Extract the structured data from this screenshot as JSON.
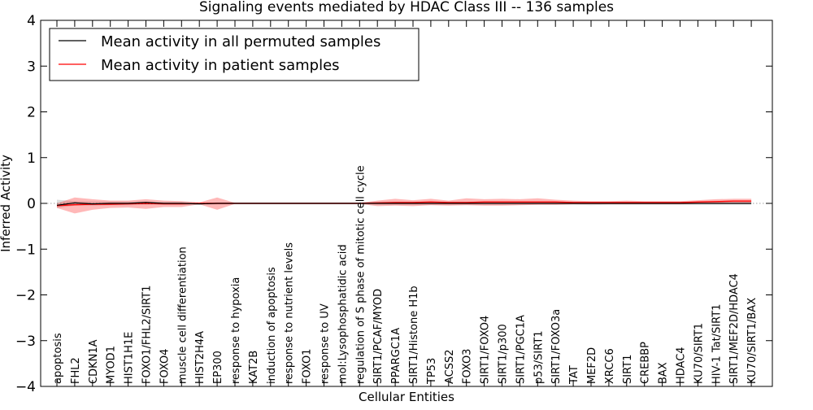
{
  "chart_data": {
    "type": "line",
    "title": "Signaling events mediated by HDAC Class III -- 136 samples",
    "xlabel": "Cellular Entities",
    "ylabel": "Inferred Activity",
    "ylim": [
      -4,
      4
    ],
    "yticks": [
      "4",
      "3",
      "2",
      "1",
      "0",
      "−1",
      "−2",
      "−3",
      "−4"
    ],
    "ytick_values": [
      4,
      3,
      2,
      1,
      0,
      -1,
      -2,
      -3,
      -4
    ],
    "legend_position": "top-left",
    "categories": [
      "apoptosis",
      "FHL2",
      "CDKN1A",
      "MYOD1",
      "HIST1H1E",
      "FOXO1/FHL2/SIRT1",
      "FOXO4",
      "muscle cell differentiation",
      "HIST2H4A",
      "EP300",
      "response to hypoxia",
      "KAT2B",
      "induction of apoptosis",
      "response to nutrient levels",
      "FOXO1",
      "response to UV",
      "mol:Lysophosphatidic acid",
      "regulation of S phase of mitotic cell cycle",
      "SIRT1/PCAF/MYOD",
      "PPARGC1A",
      "SIRT1/Histone H1b",
      "TP53",
      "ACSS2",
      "FOXO3",
      "SIRT1/FOXO4",
      "SIRT1/p300",
      "SIRT1/PGC1A",
      "p53/SIRT1",
      "SIRT1/FOXO3a",
      "TAT",
      "MEF2D",
      "XRCC6",
      "SIRT1",
      "CREBBP",
      "BAX",
      "HDAC4",
      "KU70/SIRT1",
      "HIV-1 Tat/SIRT1",
      "SIRT1/MEF2D/HDAC4",
      "KU70/SIRT1/BAX"
    ],
    "series": [
      {
        "name": "Mean activity in all permuted samples",
        "color": "#000000",
        "values": [
          -0.04,
          0.01,
          -0.01,
          0.0,
          0.0,
          0.02,
          0.0,
          0.0,
          -0.01,
          0.0,
          0.0,
          0.0,
          0.0,
          0.0,
          0.0,
          0.0,
          0.0,
          0.0,
          0.0,
          0.0,
          0.0,
          0.0,
          0.0,
          0.0,
          0.0,
          0.0,
          0.0,
          0.0,
          0.0,
          0.0,
          0.0,
          0.0,
          0.0,
          0.0,
          0.0,
          0.0,
          0.0,
          0.0,
          0.0,
          0.0
        ],
        "lower": [
          -0.1,
          -0.05,
          -0.05,
          -0.04,
          -0.04,
          -0.03,
          -0.03,
          -0.03,
          -0.03,
          -0.02,
          -0.02,
          -0.02,
          -0.02,
          -0.02,
          -0.02,
          -0.02,
          -0.02,
          -0.02,
          -0.03,
          -0.03,
          -0.03,
          -0.03,
          -0.03,
          -0.03,
          -0.03,
          -0.03,
          -0.03,
          -0.03,
          -0.03,
          -0.03,
          -0.04,
          -0.03,
          -0.03,
          -0.03,
          -0.03,
          -0.03,
          -0.03,
          -0.03,
          -0.03,
          -0.03
        ],
        "upper": [
          0.08,
          0.05,
          0.04,
          0.04,
          0.04,
          0.04,
          0.03,
          0.03,
          0.02,
          0.02,
          0.02,
          0.02,
          0.02,
          0.02,
          0.02,
          0.02,
          0.02,
          0.02,
          0.03,
          0.03,
          0.03,
          0.03,
          0.03,
          0.03,
          0.03,
          0.03,
          0.03,
          0.03,
          0.03,
          0.03,
          0.03,
          0.03,
          0.03,
          0.03,
          0.03,
          0.03,
          0.03,
          0.03,
          0.03,
          0.03
        ]
      },
      {
        "name": "Mean activity in patient samples",
        "color": "#ff0000",
        "values": [
          -0.05,
          -0.03,
          -0.02,
          -0.02,
          -0.01,
          0.0,
          -0.01,
          -0.01,
          0.0,
          0.0,
          0.0,
          0.0,
          0.0,
          0.0,
          0.0,
          0.0,
          0.0,
          0.0,
          0.01,
          0.02,
          0.02,
          0.03,
          0.02,
          0.02,
          0.03,
          0.03,
          0.03,
          0.03,
          0.03,
          0.02,
          0.02,
          0.02,
          0.02,
          0.02,
          0.02,
          0.02,
          0.03,
          0.04,
          0.05,
          0.05
        ],
        "lower": [
          -0.1,
          -0.22,
          -0.14,
          -0.1,
          -0.09,
          -0.12,
          -0.08,
          -0.08,
          -0.02,
          -0.14,
          -0.01,
          -0.01,
          -0.01,
          -0.01,
          -0.01,
          -0.01,
          -0.01,
          -0.01,
          -0.06,
          -0.05,
          -0.06,
          -0.04,
          -0.05,
          -0.04,
          -0.05,
          -0.05,
          -0.04,
          -0.03,
          -0.03,
          -0.02,
          -0.02,
          -0.02,
          -0.02,
          -0.02,
          -0.02,
          -0.02,
          -0.01,
          0.0,
          0.0,
          0.0
        ],
        "upper": [
          0.0,
          0.13,
          0.09,
          0.06,
          0.06,
          0.09,
          0.06,
          0.05,
          0.02,
          0.13,
          0.01,
          0.01,
          0.01,
          0.01,
          0.01,
          0.01,
          0.01,
          0.01,
          0.06,
          0.1,
          0.07,
          0.1,
          0.06,
          0.11,
          0.09,
          0.1,
          0.09,
          0.11,
          0.08,
          0.06,
          0.05,
          0.05,
          0.06,
          0.05,
          0.05,
          0.05,
          0.07,
          0.09,
          0.1,
          0.1
        ]
      }
    ]
  }
}
